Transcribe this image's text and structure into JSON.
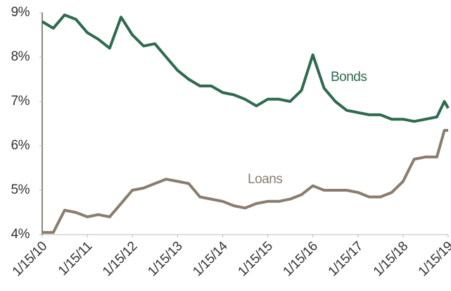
{
  "chart_data": {
    "type": "line",
    "x": [
      "1/15/10",
      "4/15/10",
      "7/15/10",
      "10/15/10",
      "1/15/11",
      "4/15/11",
      "7/15/11",
      "10/15/11",
      "1/15/12",
      "4/15/12",
      "7/15/12",
      "10/15/12",
      "1/15/13",
      "4/15/13",
      "7/15/13",
      "10/15/13",
      "1/15/14",
      "4/15/14",
      "7/15/14",
      "10/15/14",
      "1/15/15",
      "4/15/15",
      "7/15/15",
      "10/15/15",
      "1/15/16",
      "4/15/16",
      "7/15/16",
      "10/15/16",
      "1/15/17",
      "4/15/17",
      "7/15/17",
      "10/15/17",
      "1/15/18",
      "4/15/18",
      "7/15/18",
      "10/15/18",
      "12/15/18",
      "1/15/19"
    ],
    "series": [
      {
        "name": "Bonds",
        "color": "#2e6b4f",
        "values": [
          8.8,
          8.65,
          8.95,
          8.85,
          8.55,
          8.4,
          8.2,
          8.9,
          8.5,
          8.25,
          8.3,
          8.0,
          7.7,
          7.5,
          7.35,
          7.35,
          7.2,
          7.15,
          7.05,
          6.9,
          7.05,
          7.05,
          7.0,
          7.25,
          8.05,
          7.3,
          7.0,
          6.8,
          6.75,
          6.7,
          6.7,
          6.6,
          6.6,
          6.55,
          6.6,
          6.65,
          7.0,
          6.85
        ]
      },
      {
        "name": "Loans",
        "color": "#8a7d6e",
        "values": [
          4.05,
          4.05,
          4.55,
          4.5,
          4.4,
          4.45,
          4.4,
          4.7,
          5.0,
          5.05,
          5.15,
          5.25,
          5.2,
          5.15,
          4.85,
          4.8,
          4.75,
          4.65,
          4.6,
          4.7,
          4.75,
          4.75,
          4.8,
          4.9,
          5.1,
          5.0,
          5.0,
          5.0,
          4.95,
          4.85,
          4.85,
          4.95,
          5.2,
          5.7,
          5.75,
          5.75,
          6.35,
          6.35
        ]
      }
    ],
    "xlim": [
      "1/15/10",
      "1/15/19"
    ],
    "xticks": [
      "1/15/10",
      "1/15/11",
      "1/15/12",
      "1/15/13",
      "1/15/14",
      "1/15/15",
      "1/15/16",
      "1/15/17",
      "1/15/18",
      "1/15/19"
    ],
    "ylim": [
      4,
      9
    ],
    "yticks": [
      {
        "value": 4,
        "label": "4%"
      },
      {
        "value": 5,
        "label": "5%"
      },
      {
        "value": 6,
        "label": "6%"
      },
      {
        "value": 7,
        "label": "7%"
      },
      {
        "value": 8,
        "label": "8%"
      },
      {
        "value": 9,
        "label": "9%"
      }
    ],
    "grid": false
  }
}
